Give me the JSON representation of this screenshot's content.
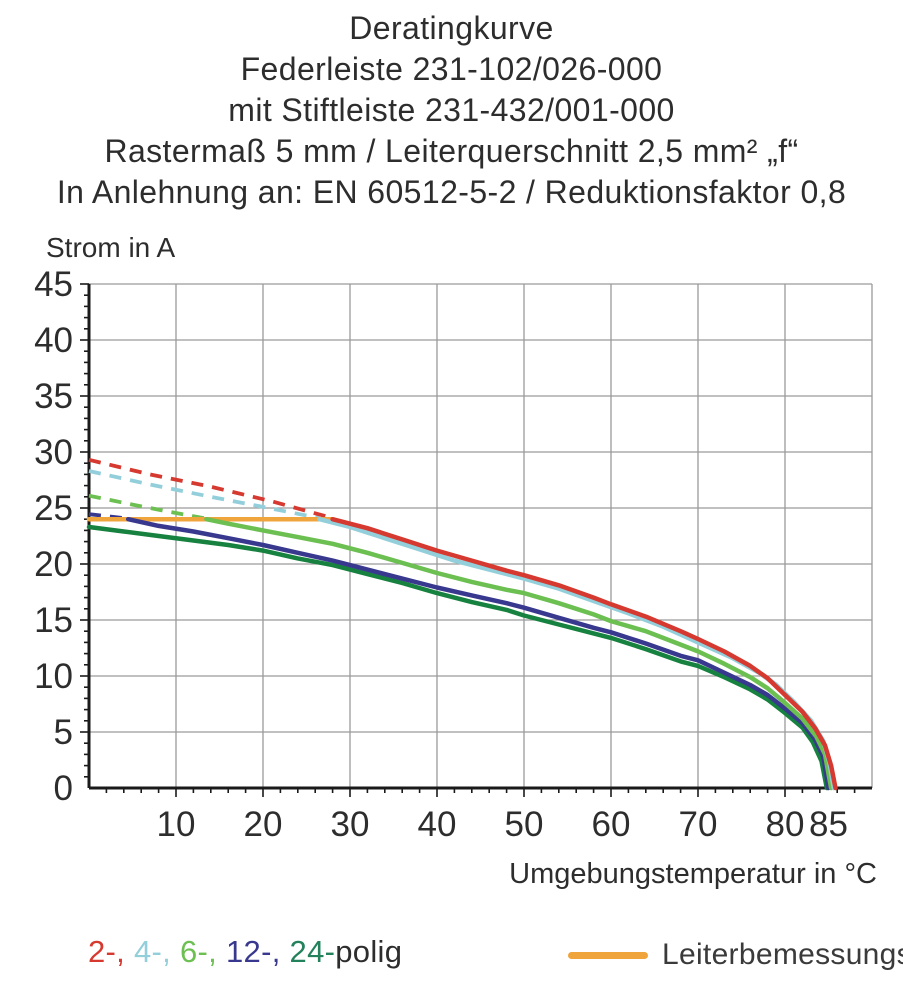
{
  "title_lines": [
    "Deratingkurve",
    "Federleiste 231-102/026-000",
    "mit Stiftleiste 231-432/001-000",
    "Rastermaß 5 mm / Leiterquerschnitt 2,5 mm² „f“",
    "In Anlehnung an: EN 60512-5-2 / Reduktionsfaktor 0,8"
  ],
  "y_axis_label": "Strom in A",
  "x_axis_label": "Umgebungstemperatur in °C",
  "legend": {
    "poles": [
      {
        "label": "2-, ",
        "color": "#d5392f"
      },
      {
        "label": "4-, ",
        "color": "#93cfdb"
      },
      {
        "label": "6-, ",
        "color": "#6cbf51"
      },
      {
        "label": "12-, ",
        "color": "#39388f"
      },
      {
        "label": "24-",
        "color": "#23815b"
      }
    ],
    "poles_suffix": "polig",
    "poles_suffix_color": "#2d2d2d",
    "rated_current_label": "Leiterbemessungsstrom",
    "rated_current_color": "#f0a43c"
  },
  "chart_data": {
    "type": "line",
    "title": "Deratingkurve",
    "xlabel": "Umgebungstemperatur in °C",
    "ylabel": "Strom in A",
    "xlim": [
      0,
      90
    ],
    "ylim": [
      0,
      45
    ],
    "grid": true,
    "grid_color": "#9a9a9a",
    "axis_color": "#1a1a1a",
    "text_color": "#2d2d2d",
    "x_gridlines": [
      10,
      20,
      30,
      40,
      50,
      60,
      70,
      80,
      90
    ],
    "y_gridlines": [
      5,
      10,
      15,
      20,
      25,
      30,
      35,
      40,
      45
    ],
    "x_tick_labels": [
      10,
      20,
      30,
      40,
      50,
      60,
      70,
      80,
      85
    ],
    "y_tick_labels": [
      0,
      5,
      10,
      15,
      20,
      25,
      30,
      35,
      40,
      45
    ],
    "x_minor_step": 2,
    "y_minor_step": 1,
    "rated_current": {
      "name": "Leiterbemessungsstrom",
      "color": "#f0a43c",
      "value_a": 24,
      "x_start": 0,
      "x_end": 28
    },
    "series": [
      {
        "name": "24-polig",
        "color": "#17813f",
        "solid_points": [
          [
            0,
            23.3
          ],
          [
            4,
            22.9
          ],
          [
            8,
            22.5
          ],
          [
            12,
            22.1
          ],
          [
            16,
            21.7
          ],
          [
            20,
            21.2
          ],
          [
            24,
            20.5
          ],
          [
            28,
            19.9
          ],
          [
            32,
            19.1
          ],
          [
            36,
            18.3
          ],
          [
            40,
            17.4
          ],
          [
            44,
            16.6
          ],
          [
            48,
            15.9
          ],
          [
            50,
            15.4
          ],
          [
            54,
            14.6
          ],
          [
            58,
            13.8
          ],
          [
            60,
            13.4
          ],
          [
            64,
            12.4
          ],
          [
            68,
            11.3
          ],
          [
            70,
            10.9
          ],
          [
            73,
            9.9
          ],
          [
            76,
            8.8
          ],
          [
            78,
            7.9
          ],
          [
            80,
            6.7
          ],
          [
            82,
            5.4
          ],
          [
            83.2,
            4.1
          ],
          [
            84.2,
            2.4
          ],
          [
            84.8,
            0
          ]
        ]
      },
      {
        "name": "12-polig",
        "color": "#39388f",
        "dashed_points": [
          [
            0,
            24.45
          ],
          [
            4.5,
            24.05
          ]
        ],
        "solid_points": [
          [
            4.5,
            24
          ],
          [
            8,
            23.4
          ],
          [
            12,
            22.9
          ],
          [
            16,
            22.3
          ],
          [
            20,
            21.7
          ],
          [
            24,
            21.0
          ],
          [
            28,
            20.3
          ],
          [
            32,
            19.5
          ],
          [
            36,
            18.7
          ],
          [
            40,
            17.9
          ],
          [
            44,
            17.2
          ],
          [
            48,
            16.5
          ],
          [
            50,
            16.1
          ],
          [
            54,
            15.2
          ],
          [
            58,
            14.3
          ],
          [
            60,
            13.9
          ],
          [
            64,
            12.9
          ],
          [
            68,
            11.8
          ],
          [
            70,
            11.4
          ],
          [
            73,
            10.3
          ],
          [
            76,
            9.2
          ],
          [
            78,
            8.3
          ],
          [
            80,
            7.1
          ],
          [
            82,
            5.8
          ],
          [
            83.4,
            4.4
          ],
          [
            84.4,
            2.8
          ],
          [
            85,
            0
          ]
        ]
      },
      {
        "name": "6-polig",
        "color": "#6cbf51",
        "dashed_points": [
          [
            0,
            26.1
          ],
          [
            5,
            25.3
          ],
          [
            9,
            24.7
          ],
          [
            13.5,
            24.05
          ]
        ],
        "solid_points": [
          [
            13.5,
            24
          ],
          [
            16,
            23.6
          ],
          [
            20,
            23.0
          ],
          [
            24,
            22.4
          ],
          [
            28,
            21.8
          ],
          [
            32,
            21.0
          ],
          [
            36,
            20.1
          ],
          [
            40,
            19.2
          ],
          [
            44,
            18.4
          ],
          [
            48,
            17.7
          ],
          [
            50,
            17.4
          ],
          [
            54,
            16.5
          ],
          [
            58,
            15.5
          ],
          [
            60,
            14.9
          ],
          [
            64,
            14.0
          ],
          [
            68,
            12.8
          ],
          [
            70,
            12.2
          ],
          [
            73,
            11.1
          ],
          [
            76,
            9.9
          ],
          [
            78,
            8.9
          ],
          [
            80,
            7.6
          ],
          [
            82,
            6.2
          ],
          [
            83.6,
            4.6
          ],
          [
            84.6,
            3.0
          ],
          [
            85.3,
            0
          ]
        ]
      },
      {
        "name": "4-polig",
        "color": "#93cfdb",
        "dashed_points": [
          [
            0,
            28.3
          ],
          [
            7,
            27.1
          ],
          [
            14,
            26.0
          ],
          [
            20,
            25.1
          ],
          [
            26.5,
            24.1
          ]
        ],
        "solid_points": [
          [
            26.5,
            24
          ],
          [
            30,
            23.3
          ],
          [
            34,
            22.3
          ],
          [
            38,
            21.3
          ],
          [
            42,
            20.3
          ],
          [
            46,
            19.5
          ],
          [
            50,
            18.7
          ],
          [
            54,
            17.8
          ],
          [
            58,
            16.7
          ],
          [
            62,
            15.6
          ],
          [
            66,
            14.4
          ],
          [
            70,
            13.0
          ],
          [
            74,
            11.6
          ],
          [
            77,
            10.3
          ],
          [
            79,
            9.2
          ],
          [
            81,
            7.7
          ],
          [
            83,
            6.0
          ],
          [
            84.4,
            4.2
          ],
          [
            85.1,
            2.3
          ],
          [
            85.6,
            0
          ]
        ]
      },
      {
        "name": "2-polig",
        "color": "#d5392f",
        "dashed_points": [
          [
            0,
            29.3
          ],
          [
            7,
            28.0
          ],
          [
            14,
            26.9
          ],
          [
            21,
            25.6
          ],
          [
            28,
            24.1
          ]
        ],
        "solid_points": [
          [
            28,
            24
          ],
          [
            32,
            23.2
          ],
          [
            36,
            22.2
          ],
          [
            40,
            21.2
          ],
          [
            44,
            20.3
          ],
          [
            48,
            19.4
          ],
          [
            50,
            19.0
          ],
          [
            54,
            18.1
          ],
          [
            58,
            17.0
          ],
          [
            60,
            16.4
          ],
          [
            64,
            15.3
          ],
          [
            68,
            14.0
          ],
          [
            70,
            13.3
          ],
          [
            73,
            12.2
          ],
          [
            76,
            10.9
          ],
          [
            78,
            9.8
          ],
          [
            80,
            8.3
          ],
          [
            82,
            6.8
          ],
          [
            83.5,
            5.3
          ],
          [
            84.6,
            3.8
          ],
          [
            85.3,
            2.0
          ],
          [
            85.8,
            0
          ]
        ]
      }
    ]
  }
}
